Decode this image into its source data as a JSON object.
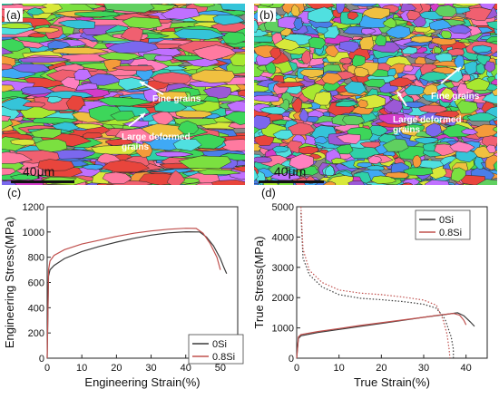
{
  "panels": {
    "a": {
      "label": "(a)",
      "scale": "40μm",
      "annotations": [
        "Fine grains",
        "Large deformed\ngrains"
      ]
    },
    "b": {
      "label": "(b)",
      "scale": "40μm",
      "annotations": [
        "Fine grains",
        "Large deformed\ngrains"
      ]
    },
    "c": {
      "label": "(c)"
    },
    "d": {
      "label": "(d)"
    }
  },
  "colors": {
    "0Si": "#3a3a3a",
    "0.8Si": "#c0504d"
  },
  "chart_data": [
    {
      "type": "line",
      "panel": "c",
      "xlabel": "Engineering Strain(%)",
      "ylabel": "Engineering Stress(MPa)",
      "xlim": [
        0,
        55
      ],
      "ylim": [
        0,
        1200
      ],
      "xticks": [
        0,
        10,
        20,
        30,
        40,
        50
      ],
      "yticks": [
        0,
        200,
        400,
        600,
        800,
        1000,
        1200
      ],
      "legend": "bottom-right",
      "grid": false,
      "series": [
        {
          "name": "0Si",
          "style": "solid",
          "color": "#3a3a3a",
          "points": [
            [
              0,
              0
            ],
            [
              0.4,
              650
            ],
            [
              0.8,
              700
            ],
            [
              2,
              735
            ],
            [
              5,
              790
            ],
            [
              10,
              845
            ],
            [
              15,
              885
            ],
            [
              20,
              920
            ],
            [
              25,
              950
            ],
            [
              30,
              975
            ],
            [
              35,
              993
            ],
            [
              40,
              1002
            ],
            [
              44,
              1000
            ],
            [
              46,
              960
            ],
            [
              48,
              890
            ],
            [
              50,
              790
            ],
            [
              51,
              720
            ],
            [
              51.8,
              670
            ]
          ]
        },
        {
          "name": "0.8Si",
          "style": "solid",
          "color": "#c0504d",
          "points": [
            [
              0,
              0
            ],
            [
              0.4,
              700
            ],
            [
              0.8,
              770
            ],
            [
              2,
              815
            ],
            [
              5,
              860
            ],
            [
              10,
              905
            ],
            [
              15,
              935
            ],
            [
              20,
              965
            ],
            [
              25,
              990
            ],
            [
              30,
              1008
            ],
            [
              35,
              1022
            ],
            [
              40,
              1030
            ],
            [
              43,
              1028
            ],
            [
              45,
              990
            ],
            [
              47,
              910
            ],
            [
              49,
              800
            ],
            [
              50,
              700
            ]
          ]
        }
      ]
    },
    {
      "type": "line",
      "panel": "d",
      "xlabel": "True Strain(%)",
      "ylabel": "True Stress(MPa)",
      "xlim": [
        0,
        45
      ],
      "ylim": [
        0,
        5000
      ],
      "xticks": [
        0,
        10,
        20,
        30,
        40
      ],
      "yticks": [
        0,
        1000,
        2000,
        3000,
        4000,
        5000
      ],
      "legend": "top-right",
      "grid": false,
      "series": [
        {
          "name": "0Si",
          "style": "solid",
          "color": "#3a3a3a",
          "points": [
            [
              0,
              0
            ],
            [
              0.4,
              650
            ],
            [
              1,
              740
            ],
            [
              5,
              850
            ],
            [
              10,
              950
            ],
            [
              15,
              1050
            ],
            [
              20,
              1150
            ],
            [
              25,
              1250
            ],
            [
              30,
              1350
            ],
            [
              35,
              1440
            ],
            [
              38,
              1500
            ],
            [
              39.5,
              1400
            ],
            [
              41,
              1200
            ],
            [
              42,
              1050
            ]
          ]
        },
        {
          "name": "0.8Si",
          "style": "solid",
          "color": "#c0504d",
          "points": [
            [
              0,
              0
            ],
            [
              0.4,
              700
            ],
            [
              1,
              780
            ],
            [
              5,
              880
            ],
            [
              10,
              980
            ],
            [
              15,
              1080
            ],
            [
              20,
              1170
            ],
            [
              25,
              1260
            ],
            [
              30,
              1350
            ],
            [
              34,
              1430
            ],
            [
              37,
              1480
            ],
            [
              38.5,
              1420
            ],
            [
              39.5,
              1250
            ],
            [
              40,
              1100
            ]
          ]
        },
        {
          "name": "0Si",
          "style": "dotted",
          "color": "#3a3a3a",
          "points": [
            [
              1,
              4800
            ],
            [
              1.5,
              3300
            ],
            [
              3,
              2750
            ],
            [
              6,
              2350
            ],
            [
              10,
              2100
            ],
            [
              15,
              1980
            ],
            [
              20,
              1930
            ],
            [
              25,
              1870
            ],
            [
              30,
              1780
            ],
            [
              33,
              1650
            ],
            [
              35,
              1300
            ],
            [
              36,
              900
            ],
            [
              36.5,
              700
            ],
            [
              37,
              300
            ],
            [
              37,
              0
            ]
          ]
        },
        {
          "name": "0.8Si",
          "style": "dotted",
          "color": "#c0504d",
          "points": [
            [
              1,
              5000
            ],
            [
              1.5,
              3600
            ],
            [
              3,
              2900
            ],
            [
              6,
              2500
            ],
            [
              10,
              2250
            ],
            [
              15,
              2150
            ],
            [
              20,
              2100
            ],
            [
              25,
              2020
            ],
            [
              30,
              1920
            ],
            [
              33,
              1750
            ],
            [
              34.5,
              1300
            ],
            [
              35.5,
              800
            ],
            [
              36,
              300
            ],
            [
              36.2,
              0
            ]
          ]
        }
      ]
    }
  ]
}
